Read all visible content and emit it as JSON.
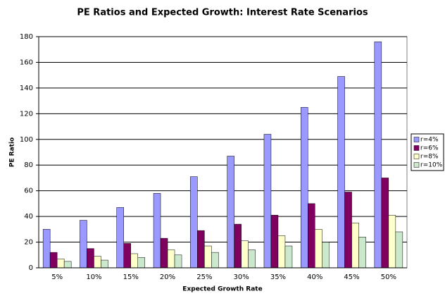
{
  "chart_data": {
    "type": "bar",
    "title": "PE Ratios and Expected Growth: Interest Rate Scenarios",
    "x_label": "Expected Growth Rate",
    "y_label": "PE Ratio",
    "categories": [
      "5%",
      "10%",
      "15%",
      "20%",
      "25%",
      "30%",
      "35%",
      "40%",
      "45%",
      "50%"
    ],
    "series": [
      {
        "name": "r=4%",
        "color": "#9999ff",
        "values": [
          30,
          37,
          47,
          58,
          71,
          87,
          104,
          125,
          149,
          176
        ]
      },
      {
        "name": "r=6%",
        "color": "#800060",
        "values": [
          12,
          15,
          19,
          23,
          29,
          34,
          41,
          50,
          59,
          70
        ]
      },
      {
        "name": "r=8%",
        "color": "#ffffcc",
        "values": [
          7,
          9,
          11,
          14,
          17,
          21,
          25,
          30,
          35,
          41
        ]
      },
      {
        "name": "r=10%",
        "color": "#cce8cc",
        "values": [
          5,
          6,
          8,
          10,
          12,
          14,
          17,
          20,
          24,
          28
        ]
      }
    ],
    "ylim": [
      0,
      180
    ],
    "yticks": [
      0,
      20,
      40,
      60,
      80,
      100,
      120,
      140,
      160,
      180
    ],
    "grid": true,
    "legend": "right"
  }
}
